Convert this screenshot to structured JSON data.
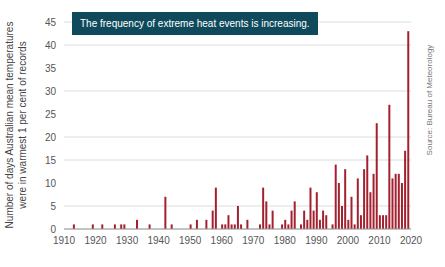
{
  "chart_data": {
    "type": "bar",
    "annotation": "The frequency of extreme heat events is increasing.",
    "source": "Source: Bureau of Meteorology",
    "ylabel": "Number of days Australian mean temperatures were in warmest 1 per cent of records",
    "x": [
      1913,
      1919,
      1922,
      1926,
      1928,
      1929,
      1933,
      1937,
      1942,
      1944,
      1950,
      1952,
      1955,
      1957,
      1958,
      1960,
      1961,
      1962,
      1963,
      1964,
      1965,
      1966,
      1968,
      1972,
      1973,
      1974,
      1975,
      1976,
      1979,
      1980,
      1981,
      1982,
      1983,
      1985,
      1986,
      1987,
      1988,
      1989,
      1990,
      1991,
      1992,
      1993,
      1995,
      1996,
      1997,
      1998,
      1999,
      2000,
      2001,
      2002,
      2003,
      2004,
      2005,
      2006,
      2007,
      2008,
      2009,
      2010,
      2011,
      2012,
      2013,
      2014,
      2015,
      2016,
      2017,
      2018,
      2019
    ],
    "values": [
      1,
      1,
      1,
      1,
      1,
      1,
      2,
      1,
      7,
      1,
      1,
      2,
      2,
      4,
      9,
      1,
      1,
      3,
      1,
      1,
      5,
      1,
      2,
      1,
      9,
      6,
      1,
      4,
      1,
      2,
      1,
      4,
      6,
      1,
      4,
      2,
      9,
      4,
      8,
      2,
      4,
      3,
      1,
      14,
      10,
      5,
      13,
      2,
      7,
      1,
      11,
      3,
      13,
      16,
      8,
      12,
      23,
      3,
      3,
      3,
      27,
      11,
      12,
      12,
      10,
      17,
      43
    ],
    "color": "#a3202f",
    "xlim": [
      1910,
      2020
    ],
    "xticks": [
      1910,
      1920,
      1930,
      1940,
      1950,
      1960,
      1970,
      1980,
      1990,
      2000,
      2010,
      2020
    ],
    "ylim": [
      0,
      45
    ],
    "yticks": [
      0,
      5,
      10,
      15,
      20,
      25,
      30,
      35,
      40,
      45
    ],
    "grid": true
  }
}
